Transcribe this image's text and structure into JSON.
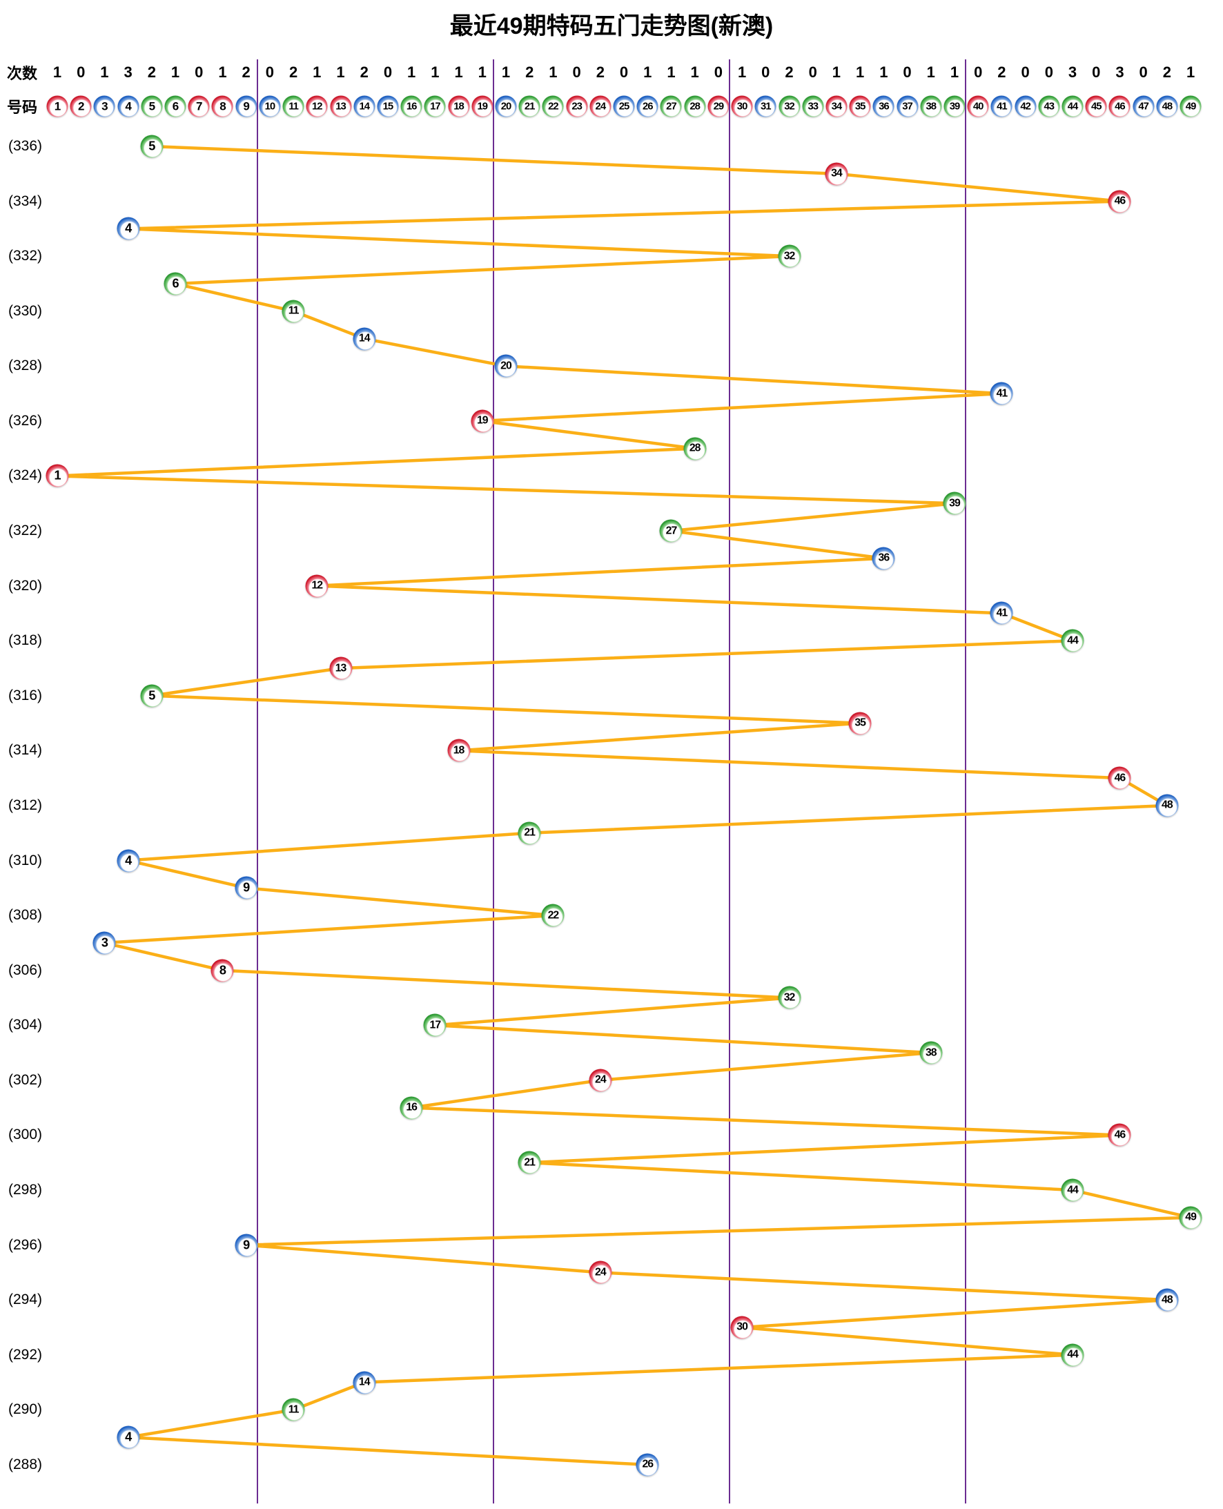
{
  "title": "最近49期特码五门走势图(新澳)",
  "header": {
    "counts_label": "次数",
    "numbers_label": "号码",
    "counts": [
      1,
      0,
      1,
      3,
      2,
      1,
      0,
      1,
      2,
      0,
      2,
      1,
      1,
      2,
      0,
      1,
      1,
      1,
      1,
      1,
      2,
      1,
      0,
      2,
      0,
      1,
      1,
      1,
      0,
      1,
      0,
      2,
      0,
      1,
      1,
      1,
      0,
      1,
      1,
      0,
      2,
      0,
      0,
      3,
      0,
      3,
      0,
      2,
      1
    ],
    "ball_numbers": [
      1,
      2,
      3,
      4,
      5,
      6,
      7,
      8,
      9,
      10,
      11,
      12,
      13,
      14,
      15,
      16,
      17,
      18,
      19,
      20,
      21,
      22,
      23,
      24,
      25,
      26,
      27,
      28,
      29,
      30,
      31,
      32,
      33,
      34,
      35,
      36,
      37,
      38,
      39,
      40,
      41,
      42,
      43,
      44,
      45,
      46,
      47,
      48,
      49
    ]
  },
  "period_labels": [
    "(336)",
    "(334)",
    "(332)",
    "(330)",
    "(328)",
    "(326)",
    "(324)",
    "(322)",
    "(320)",
    "(318)",
    "(316)",
    "(314)",
    "(312)",
    "(310)",
    "(308)",
    "(306)",
    "(304)",
    "(302)",
    "(300)",
    "(298)",
    "(296)",
    "(294)",
    "(292)",
    "(290)",
    "(288)"
  ],
  "colors": {
    "red": "#d11a2d",
    "blue": "#2063c5",
    "green": "#2f9e35",
    "line": "#fbaf17",
    "divider": "#6b2c91",
    "red_numbers": [
      1,
      2,
      7,
      8,
      12,
      13,
      18,
      19,
      23,
      24,
      29,
      30,
      34,
      35,
      40,
      45,
      46
    ],
    "blue_numbers": [
      3,
      4,
      9,
      10,
      14,
      15,
      20,
      25,
      26,
      31,
      36,
      37,
      41,
      42,
      47,
      48
    ],
    "green_numbers": [
      5,
      6,
      11,
      16,
      17,
      21,
      22,
      27,
      28,
      32,
      33,
      38,
      39,
      43,
      44,
      49
    ]
  },
  "chart_data": {
    "type": "line",
    "title": "最近49期特码五门走势图(新澳)",
    "x_categories": [
      1,
      2,
      3,
      4,
      5,
      6,
      7,
      8,
      9,
      10,
      11,
      12,
      13,
      14,
      15,
      16,
      17,
      18,
      19,
      20,
      21,
      22,
      23,
      24,
      25,
      26,
      27,
      28,
      29,
      30,
      31,
      32,
      33,
      34,
      35,
      36,
      37,
      38,
      39,
      40,
      41,
      42,
      43,
      44,
      45,
      46,
      47,
      48,
      49
    ],
    "xlabel": "号码",
    "ylabel": "期号",
    "periods_desc": "rows run from period 336 at top down to 288 at bottom, one row per period",
    "values": [
      5,
      34,
      46,
      4,
      32,
      6,
      11,
      14,
      20,
      41,
      19,
      28,
      1,
      39,
      27,
      36,
      12,
      41,
      44,
      13,
      5,
      35,
      18,
      46,
      48,
      21,
      4,
      9,
      22,
      3,
      8,
      32,
      17,
      38,
      24,
      16,
      46,
      21,
      44,
      49,
      9,
      24,
      48,
      30,
      44,
      14,
      11,
      4,
      26
    ],
    "per_number_counts": [
      1,
      0,
      1,
      3,
      2,
      1,
      0,
      1,
      2,
      0,
      2,
      1,
      1,
      2,
      0,
      1,
      1,
      1,
      1,
      1,
      2,
      1,
      0,
      2,
      0,
      1,
      1,
      1,
      0,
      1,
      0,
      2,
      0,
      1,
      1,
      1,
      0,
      1,
      1,
      0,
      2,
      0,
      0,
      3,
      0,
      3,
      0,
      2,
      1
    ],
    "group_boundaries_after": [
      9,
      19,
      29,
      39
    ],
    "grid": "off",
    "legend": "none"
  }
}
